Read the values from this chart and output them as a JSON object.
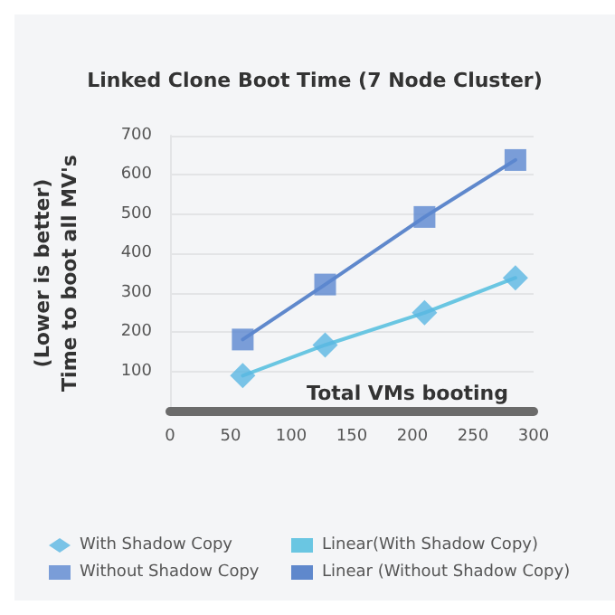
{
  "chart_data": {
    "type": "scatter",
    "title": "Linked Clone Boot Time (7 Node Cluster)",
    "xlabel": "Total VMs booting",
    "ylabel": "(Lower is better)\nTime to boot all MV's",
    "x": [
      60,
      128,
      210,
      285
    ],
    "series": [
      {
        "name": "With Shadow Copy",
        "marker": "diamond",
        "color": "#5ab6e2",
        "values": [
          89,
          167,
          249,
          338
        ]
      },
      {
        "name": "Without Shadow Copy",
        "marker": "square",
        "color": "#5b87cf",
        "values": [
          181,
          321,
          493,
          638
        ]
      },
      {
        "name": "Linear(With Shadow Copy)",
        "type": "line",
        "marker": "none",
        "color": "#6ac6e2",
        "values": [
          89,
          167,
          249,
          338
        ]
      },
      {
        "name": "Linear (Without Shadow Copy)",
        "type": "line",
        "marker": "none",
        "color": "#5f88cc",
        "values": [
          181,
          321,
          493,
          638
        ]
      }
    ],
    "xlim": [
      0,
      300
    ],
    "xticks": [
      0,
      50,
      100,
      150,
      200,
      250,
      300
    ],
    "ylim": [
      0,
      700
    ],
    "yticks": [
      {
        "value": 0,
        "label": null
      },
      100,
      200,
      300,
      400,
      500,
      600,
      700
    ],
    "grid": "y",
    "legend": "bottom"
  }
}
